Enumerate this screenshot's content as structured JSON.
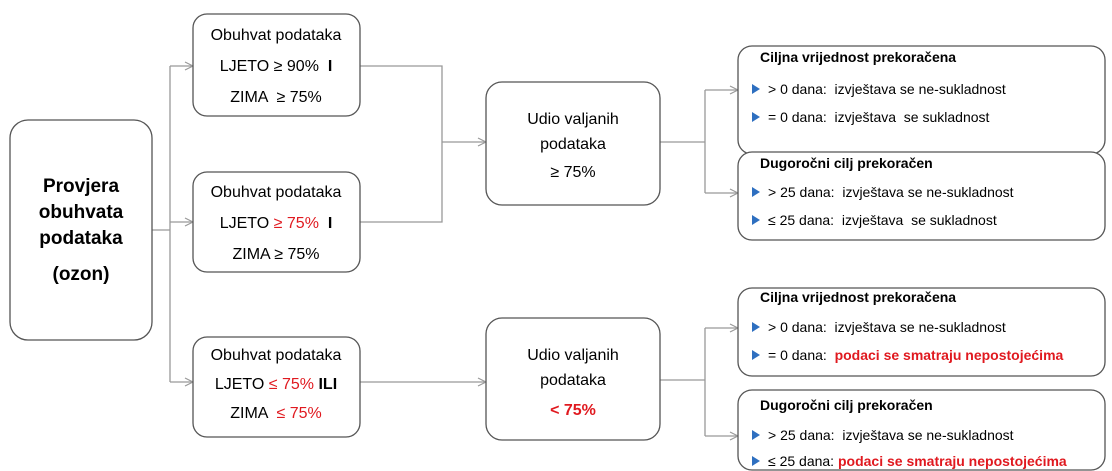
{
  "root": [
    "Provjera",
    "obuhvata",
    "podataka",
    "(ozon)"
  ],
  "coverage_boxes": [
    {
      "title": "Obuhvat podataka",
      "summer": [
        "LJETO ≥ 90%  ",
        "I"
      ],
      "winter": [
        "ZIMA  ≥ 75%"
      ]
    },
    {
      "title": "Obuhvat podataka",
      "summer": [
        "LJETO ",
        "≥ 75%  ",
        "I"
      ],
      "winter": [
        "ZIMA ≥ 75%"
      ]
    },
    {
      "title": "Obuhvat podataka",
      "summer": [
        "LJETO ",
        "≤ 75% ",
        "ILI"
      ],
      "winter": [
        "ZIMA  ",
        "≤ 75%"
      ]
    }
  ],
  "valid_boxes": [
    {
      "lines": [
        "Udio valjanih",
        "podataka",
        "≥ 75%"
      ]
    },
    {
      "lines": [
        "Udio valjanih",
        "podataka",
        "< 75%"
      ]
    }
  ],
  "result_boxes": [
    {
      "title": "Ciljna vrijednost prekoračena",
      "items": [
        [
          "> 0 dana:  izvještava se ne-sukladnost"
        ],
        [
          "= 0 dana:  izvještava  se sukladnost"
        ]
      ]
    },
    {
      "title": "Dugoročni cilj prekoračen",
      "items": [
        [
          "> 25 dana:  izvještava se ne-sukladnost"
        ],
        [
          "≤ 25 dana:  izvještava  se sukladnost"
        ]
      ]
    },
    {
      "title": "Ciljna vrijednost prekoračena",
      "items": [
        [
          "> 0 dana:  izvještava se ne-sukladnost"
        ],
        [
          "= 0 dana:  ",
          "podaci se smatraju nepostojećima"
        ]
      ]
    },
    {
      "title": "Dugoročni cilj prekoračen",
      "items": [
        [
          "> 25 dana:  izvještava se ne-sukladnost"
        ],
        [
          "≤ 25 dana: ",
          "podaci se smatraju nepostojećima"
        ]
      ]
    }
  ]
}
